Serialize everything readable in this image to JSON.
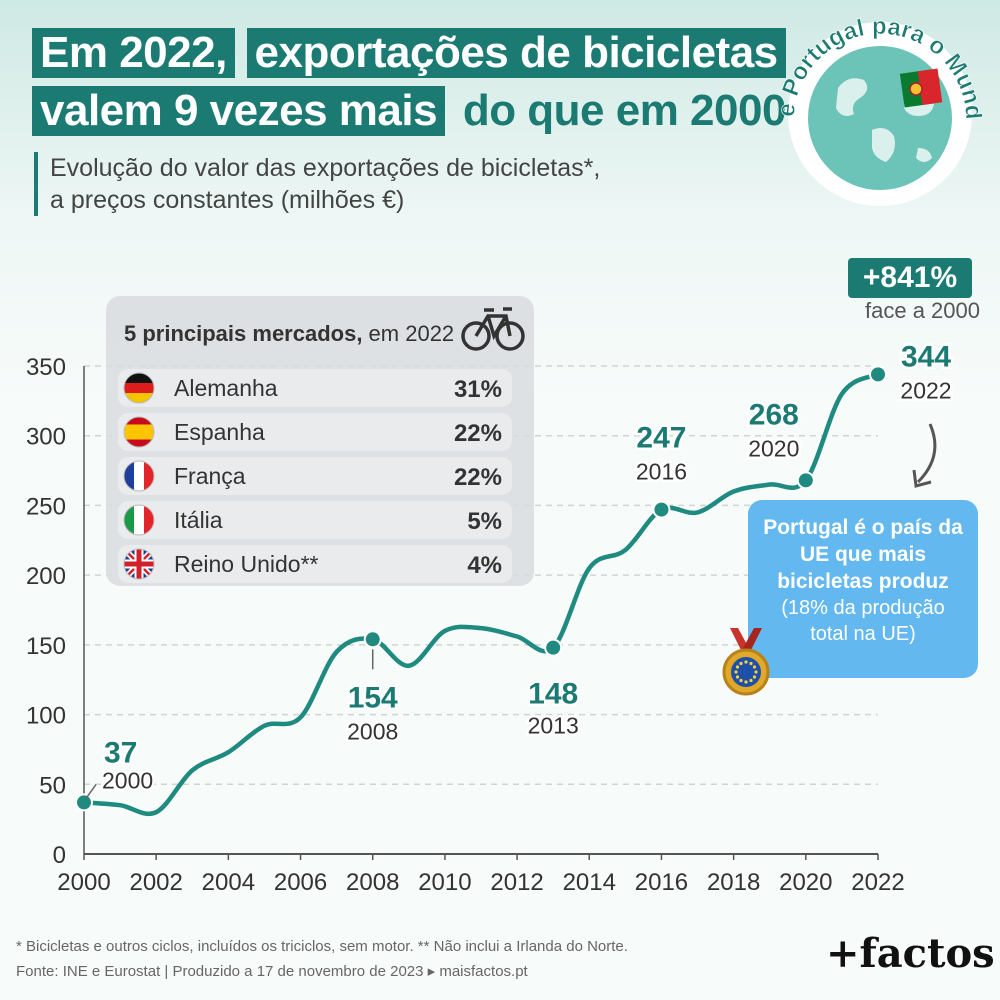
{
  "title": {
    "l1_highlight": "Em 2022,",
    "l1_plain": "exportações de bicicletas",
    "l2_highlight": "valem 9 vezes mais",
    "l2_plain": "do que em 2000"
  },
  "subtitle": {
    "line1": "Evolução do valor das exportações de bicicletas*,",
    "line2": "a preços constantes (milhões €)"
  },
  "globe": {
    "text": "De Portugal para o Mundo",
    "icon": "globe-icon",
    "flag_icon": "portugal-flag-icon"
  },
  "badge": {
    "value": "+841%",
    "label": "face a 2000"
  },
  "legend": {
    "title_bold": "5 principais mercados,",
    "title_rest": " em 2022",
    "icon": "bicycle-icon",
    "items": [
      {
        "country": "Alemanha",
        "share": "31%",
        "icon": "germany-flag-icon"
      },
      {
        "country": "Espanha",
        "share": "22%",
        "icon": "spain-flag-icon"
      },
      {
        "country": "França",
        "share": "22%",
        "icon": "france-flag-icon"
      },
      {
        "country": "Itália",
        "share": "5%",
        "icon": "italy-flag-icon"
      },
      {
        "country": "Reino Unido**",
        "share": "4%",
        "icon": "uk-flag-icon"
      }
    ]
  },
  "callout": {
    "bold": "Portugal é o país da\nUE que mais\nbicicletas produz",
    "normal": "(18% da produção\ntotal na UE)",
    "icon": "eu-medal-icon"
  },
  "chart_data": {
    "type": "line",
    "x": [
      2000,
      2001,
      2002,
      2003,
      2004,
      2005,
      2006,
      2007,
      2008,
      2009,
      2010,
      2011,
      2012,
      2013,
      2014,
      2015,
      2016,
      2017,
      2018,
      2019,
      2020,
      2021,
      2022
    ],
    "y": [
      37,
      35,
      30,
      60,
      73,
      92,
      98,
      145,
      154,
      135,
      160,
      162,
      156,
      148,
      205,
      218,
      247,
      245,
      260,
      265,
      268,
      330,
      344
    ],
    "x_ticks": [
      "2000",
      "2002",
      "2004",
      "2006",
      "2008",
      "2010",
      "2012",
      "2014",
      "2016",
      "2018",
      "2020",
      "2022"
    ],
    "y_ticks": [
      "0",
      "50",
      "100",
      "150",
      "200",
      "250",
      "300",
      "350"
    ],
    "ylim": [
      0,
      350
    ],
    "xlim": [
      2000,
      2022
    ],
    "grid": true,
    "color": "#1f8a7f",
    "annotations": [
      {
        "x": 2000,
        "value": "37",
        "year": "2000"
      },
      {
        "x": 2008,
        "value": "154",
        "year": "2008"
      },
      {
        "x": 2013,
        "value": "148",
        "year": "2013"
      },
      {
        "x": 2016,
        "value": "247",
        "year": "2016"
      },
      {
        "x": 2020,
        "value": "268",
        "year": "2020"
      },
      {
        "x": 2022,
        "value": "344",
        "year": "2022"
      }
    ]
  },
  "footer": {
    "note": "* Bicicletas e outros ciclos, incluídos os triciclos, sem motor. ** Não inclui a Irlanda do Norte.",
    "source": "Fonte: INE e Eurostat | Produzido a 17 de novembro de 2023 ▸ maisfactos.pt",
    "logo": "+factos"
  }
}
